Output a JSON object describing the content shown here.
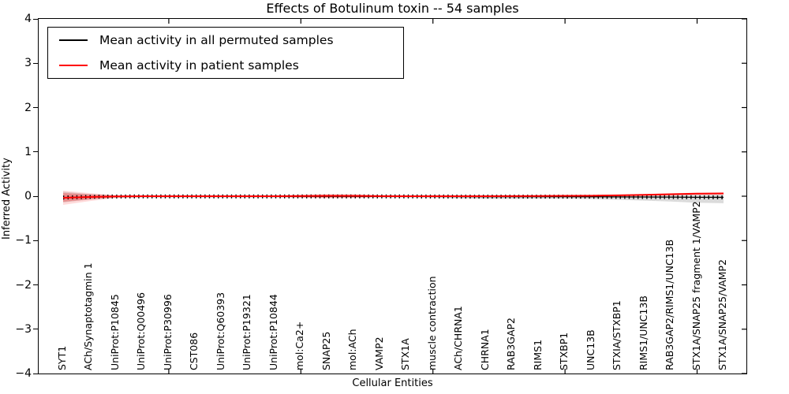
{
  "title": "Effects of Botulinum toxin -- 54 samples",
  "xlabel": "Cellular Entities",
  "ylabel": "Inferred Activity",
  "background_color": "#ffffff",
  "axis_color": "#000000",
  "legend": [
    {
      "label": "Mean activity in all permuted samples",
      "color": "#000000"
    },
    {
      "label": "Mean activity in patient samples",
      "color": "#ff0000"
    }
  ],
  "yticks": [
    "4",
    "3",
    "2",
    "1",
    "0",
    "−1",
    "−2",
    "−3",
    "−4"
  ],
  "chart_data": {
    "type": "line",
    "title": "Effects of Botulinum toxin -- 54 samples",
    "xlabel": "Cellular Entities",
    "ylabel": "Inferred Activity",
    "ylim": [
      -4,
      4
    ],
    "grid": false,
    "legend_position": "upper left",
    "xtick_major_indices": [
      4,
      9,
      14,
      19,
      24
    ],
    "categories": [
      "SYT1",
      "ACh/Synaptotagmin 1",
      "UniProt:P10845",
      "UniProt:Q00496",
      "UniProt:P30996",
      "CST086",
      "UniProt:Q60393",
      "UniProt:P19321",
      "UniProt:P10844",
      "mol:Ca2+",
      "SNAP25",
      "mol:ACh",
      "VAMP2",
      "STX1A",
      "muscle contraction",
      "ACh/CHRNA1",
      "CHRNA1",
      "RAB3GAP2",
      "RIMS1",
      "STXBP1",
      "UNC13B",
      "STXIA/STXBP1",
      "RIMS1/UNC13B",
      "RAB3GAP2/RIMS1/UNC13B",
      "STX1A/SNAP25 fragment 1/VAMP2",
      "STX1A/SNAP25/VAMP2"
    ],
    "series": [
      {
        "name": "Mean activity in all permuted samples",
        "color": "#000000",
        "marker": "vertical-dash",
        "values": [
          -0.03,
          -0.015,
          -0.006,
          -0.005,
          -0.005,
          -0.005,
          -0.005,
          -0.005,
          -0.005,
          -0.005,
          -0.005,
          -0.005,
          -0.005,
          -0.005,
          -0.006,
          -0.008,
          -0.01,
          -0.01,
          -0.01,
          -0.01,
          -0.012,
          -0.015,
          -0.018,
          -0.02,
          -0.024,
          -0.026
        ]
      },
      {
        "name": "Mean activity in patient samples",
        "color": "#ff0000",
        "marker": "none",
        "values": [
          -0.035,
          -0.018,
          -0.004,
          0,
          0,
          0,
          0,
          0,
          0,
          0.004,
          0.01,
          0.008,
          0.002,
          0,
          0,
          0,
          0,
          0.003,
          0.005,
          0.008,
          0.012,
          0.02,
          0.032,
          0.045,
          0.058,
          0.062
        ]
      }
    ],
    "bands": [
      {
        "name": "permuted-samples-std",
        "color": "rgba(0,0,0,0.14)",
        "upper": [
          0.1,
          0.05,
          0.018,
          0.012,
          0.012,
          0.012,
          0.012,
          0.012,
          0.012,
          0.012,
          0.012,
          0.012,
          0.012,
          0.012,
          0.015,
          0.018,
          0.02,
          0.02,
          0.02,
          0.02,
          0.022,
          0.026,
          0.03,
          0.032,
          0.038,
          0.04
        ],
        "lower": [
          -0.14,
          -0.075,
          -0.035,
          -0.028,
          -0.028,
          -0.028,
          -0.028,
          -0.028,
          -0.028,
          -0.028,
          -0.028,
          -0.028,
          -0.028,
          -0.028,
          -0.035,
          -0.05,
          -0.06,
          -0.062,
          -0.058,
          -0.055,
          -0.065,
          -0.08,
          -0.1,
          -0.12,
          -0.148,
          -0.158
        ]
      },
      {
        "name": "patient-samples-std-outer",
        "color": "rgba(255,0,0,0.14)",
        "upper": [
          0.125,
          0.072,
          0.024,
          0.015,
          0.014,
          0.014,
          0.014,
          0.014,
          0.014,
          0.034,
          0.05,
          0.044,
          0.02,
          0.015,
          0.014,
          0.014,
          0.014,
          0.015,
          0.015,
          0.018,
          0.022,
          0.034,
          0.05,
          0.066,
          0.082,
          0.086
        ],
        "lower": [
          -0.195,
          -0.112,
          -0.04,
          -0.026,
          -0.025,
          -0.025,
          -0.025,
          -0.025,
          -0.025,
          -0.035,
          -0.046,
          -0.04,
          -0.026,
          -0.025,
          -0.025,
          -0.025,
          -0.025,
          -0.022,
          -0.02,
          -0.016,
          -0.01,
          -0.002,
          0.01,
          0.022,
          0.034,
          0.04
        ]
      },
      {
        "name": "patient-samples-std-inner",
        "color": "rgba(255,0,0,0.25)",
        "upper": [
          0.07,
          0.04,
          0.012,
          0.008,
          0.007,
          0.007,
          0.007,
          0.007,
          0.007,
          0.02,
          0.03,
          0.026,
          0.01,
          0.008,
          0.007,
          0.007,
          0.007,
          0.008,
          0.009,
          0.012,
          0.016,
          0.026,
          0.04,
          0.054,
          0.07,
          0.074
        ],
        "lower": [
          -0.125,
          -0.07,
          -0.022,
          -0.014,
          -0.013,
          -0.013,
          -0.013,
          -0.013,
          -0.013,
          -0.022,
          -0.03,
          -0.026,
          -0.014,
          -0.013,
          -0.013,
          -0.013,
          -0.013,
          -0.011,
          -0.009,
          -0.005,
          0.0,
          0.008,
          0.02,
          0.034,
          0.046,
          0.05
        ]
      }
    ]
  }
}
